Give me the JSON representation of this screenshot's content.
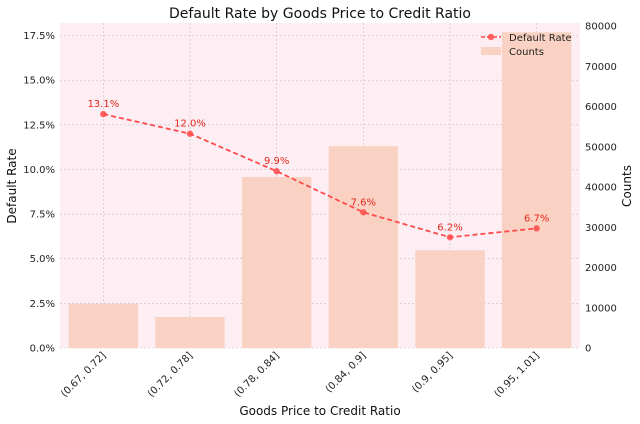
{
  "chart_data": {
    "type": "bar+line",
    "title": "Default Rate by Goods Price to Credit Ratio",
    "xlabel": "Goods Price to Credit Ratio",
    "ylabel_left": "Default Rate",
    "ylabel_right": "Counts",
    "categories": [
      "(0.67, 0.72]",
      "(0.72, 0.78]",
      "(0.78, 0.84]",
      "(0.84, 0.9]",
      "(0.9, 0.95]",
      "(0.95, 1.01]"
    ],
    "series": [
      {
        "name": "Default Rate",
        "type": "line",
        "axis": "left",
        "values": [
          13.1,
          12.0,
          9.9,
          7.6,
          6.2,
          6.7
        ],
        "labels": [
          "13.1%",
          "12.0%",
          "9.9%",
          "7.6%",
          "6.2%",
          "6.7%"
        ],
        "color": "#ff4b4b"
      },
      {
        "name": "Counts",
        "type": "bar",
        "axis": "right",
        "values": [
          11000,
          7700,
          42500,
          50200,
          24300,
          78500
        ],
        "color": "#f9d2c3"
      }
    ],
    "ylim_left": [
      0,
      18.2
    ],
    "ylim_right": [
      0,
      80800
    ],
    "yticks_left": [
      "0.0%",
      "2.5%",
      "5.0%",
      "7.5%",
      "10.0%",
      "12.5%",
      "15.0%",
      "17.5%"
    ],
    "yticks_left_values": [
      0,
      2.5,
      5,
      7.5,
      10,
      12.5,
      15,
      17.5
    ],
    "yticks_right": [
      "0",
      "10000",
      "20000",
      "30000",
      "40000",
      "50000",
      "60000",
      "70000",
      "80000"
    ],
    "yticks_right_values": [
      0,
      10000,
      20000,
      30000,
      40000,
      50000,
      60000,
      70000,
      80000
    ],
    "grid": true,
    "legend": "top-right",
    "background_color": "#fdeef3"
  }
}
